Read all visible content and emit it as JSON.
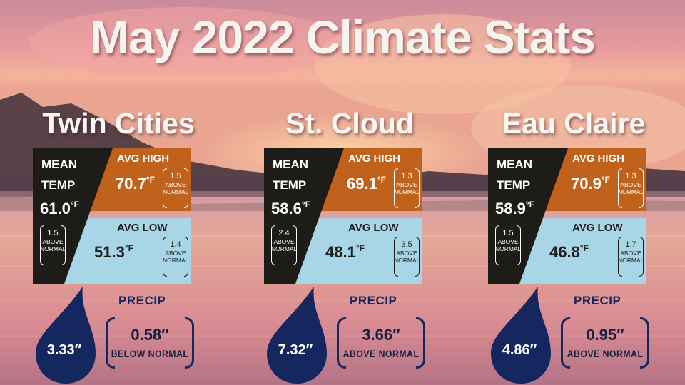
{
  "title": "May 2022 Climate Stats",
  "labels": {
    "mean_temp": "MEAN TEMP",
    "avg_high": "AVG HIGH",
    "avg_low": "AVG LOW",
    "precip": "PRECIP",
    "unit": "°F",
    "above_normal": "ABOVE NORMAL",
    "below_normal": "BELOW NORMAL"
  },
  "colors": {
    "mean_panel": "#1e1c19",
    "high_panel": "#c1621c",
    "low_panel": "#a8d6e6",
    "precip_navy": "#14275e"
  },
  "icons": [
    "water-drop-icon"
  ],
  "cities": [
    {
      "name": "Twin Cities",
      "mean_temp": "61.0",
      "mean_dev": "1.5",
      "mean_dev_text": "ABOVE NORMAL",
      "avg_high": "70.7",
      "high_dev": "1.5",
      "high_dev_text": "ABOVE NORMAL",
      "avg_low": "51.3",
      "low_dev": "1.4",
      "low_dev_text": "ABOVE NORMAL",
      "precip": "3.33″",
      "precip_dev": "0.58″",
      "precip_dev_text": "BELOW  NORMAL"
    },
    {
      "name": "St. Cloud",
      "mean_temp": "58.6",
      "mean_dev": "2.4",
      "mean_dev_text": "ABOVE NORMAL",
      "avg_high": "69.1",
      "high_dev": "1.3",
      "high_dev_text": "ABOVE NORMAL",
      "avg_low": "48.1",
      "low_dev": "3.5",
      "low_dev_text": "ABOVE NORMAL",
      "precip": "7.32″",
      "precip_dev": "3.66″",
      "precip_dev_text": "ABOVE  NORMAL"
    },
    {
      "name": "Eau Claire",
      "mean_temp": "58.9",
      "mean_dev": "1.5",
      "mean_dev_text": "ABOVE NORMAL",
      "avg_high": "70.9",
      "high_dev": "1.3",
      "high_dev_text": "ABOVE NORMAL",
      "avg_low": "46.8",
      "low_dev": "1.7",
      "low_dev_text": "ABOVE NORMAL",
      "precip": "4.86″",
      "precip_dev": "0.95″",
      "precip_dev_text": "ABOVE  NORMAL"
    }
  ]
}
